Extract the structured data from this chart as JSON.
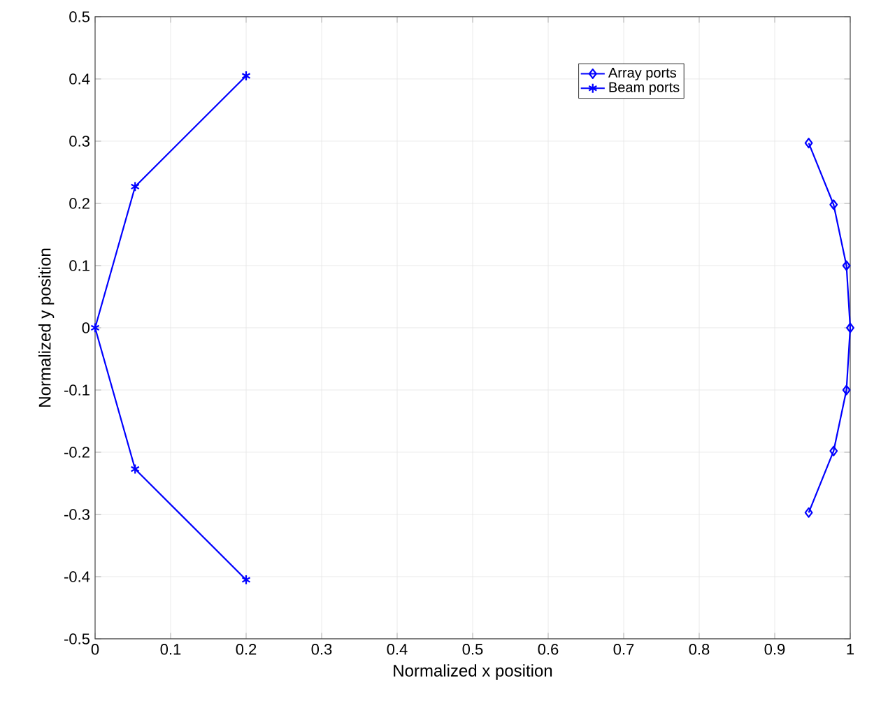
{
  "chart_data": {
    "type": "line",
    "xlabel": "Normalized x position",
    "ylabel": "Normalized y position",
    "xlim": [
      0,
      1
    ],
    "xticks": [
      0,
      0.1,
      0.2,
      0.3,
      0.4,
      0.5,
      0.6,
      0.7,
      0.8,
      0.9,
      1
    ],
    "ylim": [
      -0.5,
      0.5
    ],
    "yticks": [
      -0.5,
      -0.4,
      -0.3,
      -0.2,
      -0.1,
      0,
      0.1,
      0.2,
      0.3,
      0.4,
      0.5
    ],
    "grid": true,
    "legend": "top right",
    "series": [
      {
        "name": "Array ports",
        "color": "#0000ff",
        "marker": "diamond",
        "x": [
          0.945,
          0.978,
          0.995,
          1.0,
          0.995,
          0.978,
          0.945
        ],
        "values": [
          0.297,
          0.198,
          0.1,
          0,
          -0.1,
          -0.198,
          -0.297
        ]
      },
      {
        "name": "Beam ports",
        "color": "#0000ff",
        "marker": "cross",
        "x": [
          0.2,
          0.053,
          0,
          0.053,
          0.2
        ],
        "values": [
          0.405,
          0.227,
          0,
          -0.227,
          -0.405
        ]
      }
    ]
  }
}
